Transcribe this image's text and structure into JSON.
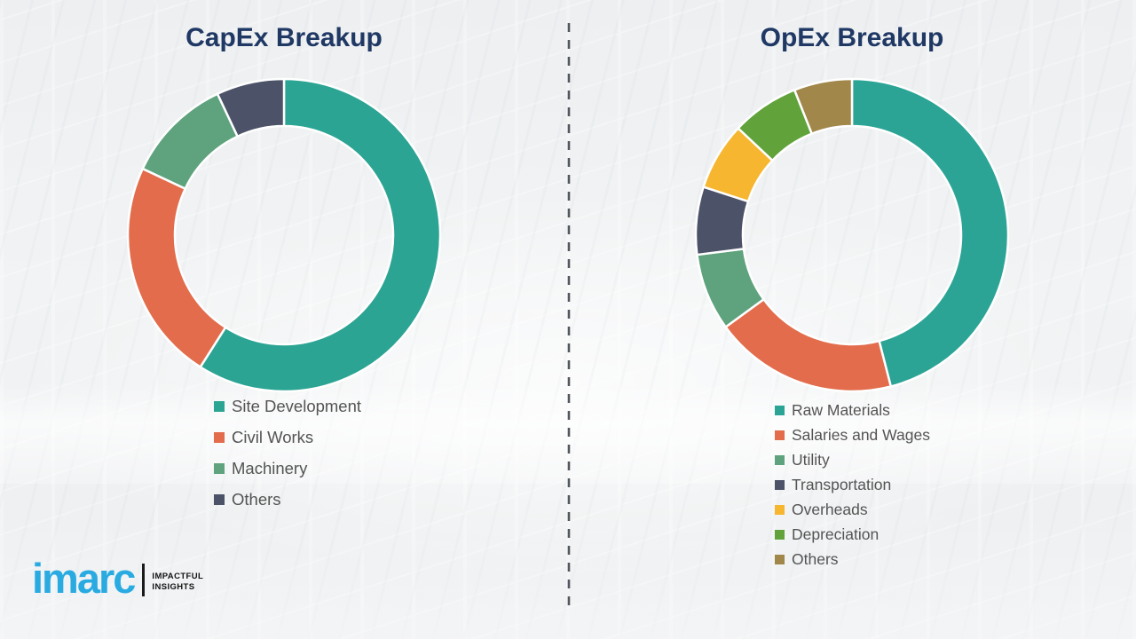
{
  "accent_colors": {
    "title": "#1F3864",
    "legend_text": "#545454",
    "divider": "#53585E"
  },
  "chart_data": [
    {
      "type": "pie",
      "subtype": "donut",
      "title": "CapEx Breakup",
      "labels": [
        "Site Development",
        "Civil Works",
        "Machinery",
        "Others"
      ],
      "values": [
        59,
        23,
        11,
        7
      ],
      "colors": [
        "#2BA493",
        "#E26C4C",
        "#5EA37D",
        "#4C5268"
      ],
      "units": "percent",
      "values_estimated_from_arc_angles": true,
      "start_angle": "12 o'clock",
      "direction": "clockwise",
      "legend_position": "below",
      "data_labels_shown": false
    },
    {
      "type": "pie",
      "subtype": "donut",
      "title": "OpEx Breakup",
      "labels": [
        "Raw Materials",
        "Salaries and Wages",
        "Utility",
        "Transportation",
        "Overheads",
        "Depreciation",
        "Others"
      ],
      "values": [
        46,
        19,
        8,
        7,
        7,
        7,
        6
      ],
      "colors": [
        "#2BA496",
        "#E26C4C",
        "#5EA37D",
        "#4C5268",
        "#F6B62F",
        "#61A33A",
        "#A1874A"
      ],
      "units": "percent",
      "values_estimated_from_arc_angles": true,
      "start_angle": "12 o'clock",
      "direction": "clockwise",
      "legend_position": "below",
      "data_labels_shown": false
    }
  ],
  "logo": {
    "brand": "imarc",
    "brand_color": "#29ABE2",
    "tagline_line1": "IMPACTFUL",
    "tagline_line2": "INSIGHTS"
  }
}
